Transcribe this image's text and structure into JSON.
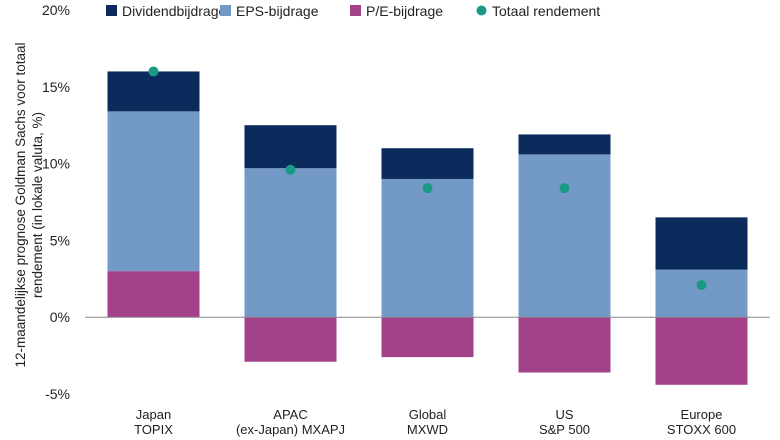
{
  "chart_data": {
    "type": "bar",
    "stacked": true,
    "categories": [
      [
        "Japan",
        "TOPIX"
      ],
      [
        "APAC",
        "(ex-Japan) MXAPJ"
      ],
      [
        "Global",
        "MXWD"
      ],
      [
        "US",
        "S&P 500"
      ],
      [
        "Europe",
        "STOXX 600"
      ]
    ],
    "series": [
      {
        "name": "P/E-bijdrage",
        "color": "#a3428a",
        "values": [
          3.0,
          -2.9,
          -2.6,
          -3.6,
          -4.4
        ]
      },
      {
        "name": "EPS-bijdrage",
        "color": "#7399c6",
        "values": [
          10.4,
          9.7,
          9.0,
          10.6,
          3.1
        ]
      },
      {
        "name": "Dividendbijdrage",
        "color": "#0b2b5c",
        "values": [
          2.6,
          2.8,
          2.0,
          1.3,
          3.4
        ]
      }
    ],
    "total": {
      "name": "Totaal rendement",
      "color": "#1a9a85",
      "values": [
        16.0,
        9.6,
        8.4,
        8.4,
        2.1
      ]
    },
    "legend_order": [
      "Dividendbijdrage",
      "EPS-bijdrage",
      "P/E-bijdrage",
      "Totaal rendement"
    ],
    "legend_position": "top",
    "ylim": [
      -5,
      20
    ],
    "yticks": [
      -5,
      0,
      5,
      10,
      15,
      20
    ],
    "ytick_labels": [
      "-5%",
      "0%",
      "5%",
      "10%",
      "15%",
      "20%"
    ],
    "ylabel_lines": [
      "12-maandelijkse prognose Goldman Sachs voor totaal",
      "rendement  (in lokale valuta, %)"
    ],
    "xlabel": "",
    "grid": false
  }
}
